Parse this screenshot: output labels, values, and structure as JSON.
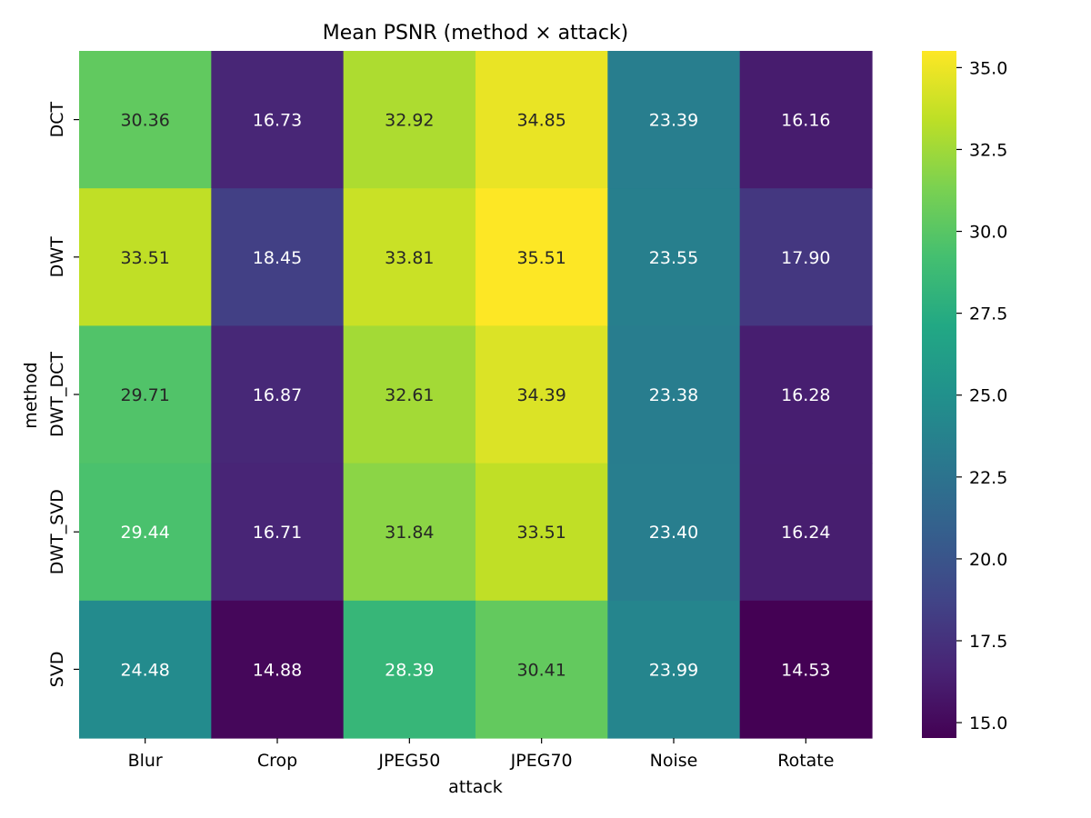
{
  "chart_data": {
    "type": "heatmap",
    "title": "Mean PSNR (method × attack)",
    "xlabel": "attack",
    "ylabel": "method",
    "x_categories": [
      "Blur",
      "Crop",
      "JPEG50",
      "JPEG70",
      "Noise",
      "Rotate"
    ],
    "y_categories": [
      "DCT",
      "DWT",
      "DWT_DCT",
      "DWT_SVD",
      "SVD"
    ],
    "values": [
      [
        30.36,
        16.73,
        32.92,
        34.85,
        23.39,
        16.16
      ],
      [
        33.51,
        18.45,
        33.81,
        35.51,
        23.55,
        17.9
      ],
      [
        29.71,
        16.87,
        32.61,
        34.39,
        23.38,
        16.28
      ],
      [
        29.44,
        16.71,
        31.84,
        33.51,
        23.4,
        16.24
      ],
      [
        24.48,
        14.88,
        28.39,
        30.41,
        23.99,
        14.53
      ]
    ],
    "value_labels": [
      [
        "30.36",
        "16.73",
        "32.92",
        "34.85",
        "23.39",
        "16.16"
      ],
      [
        "33.51",
        "18.45",
        "33.81",
        "35.51",
        "23.55",
        "17.90"
      ],
      [
        "29.71",
        "16.87",
        "32.61",
        "34.39",
        "23.38",
        "16.28"
      ],
      [
        "29.44",
        "16.71",
        "31.84",
        "33.51",
        "23.40",
        "16.24"
      ],
      [
        "24.48",
        "14.88",
        "28.39",
        "30.41",
        "23.99",
        "14.53"
      ]
    ],
    "colormap": "viridis",
    "vmin": 14.53,
    "vmax": 35.51,
    "colorbar_ticks": [
      15.0,
      17.5,
      20.0,
      22.5,
      25.0,
      27.5,
      30.0,
      32.5,
      35.0
    ],
    "colorbar_tick_labels": [
      "15.0",
      "17.5",
      "20.0",
      "22.5",
      "25.0",
      "27.5",
      "30.0",
      "32.5",
      "35.0"
    ],
    "annotation_colors": {
      "dark": "#262626",
      "light": "#ffffff"
    }
  }
}
